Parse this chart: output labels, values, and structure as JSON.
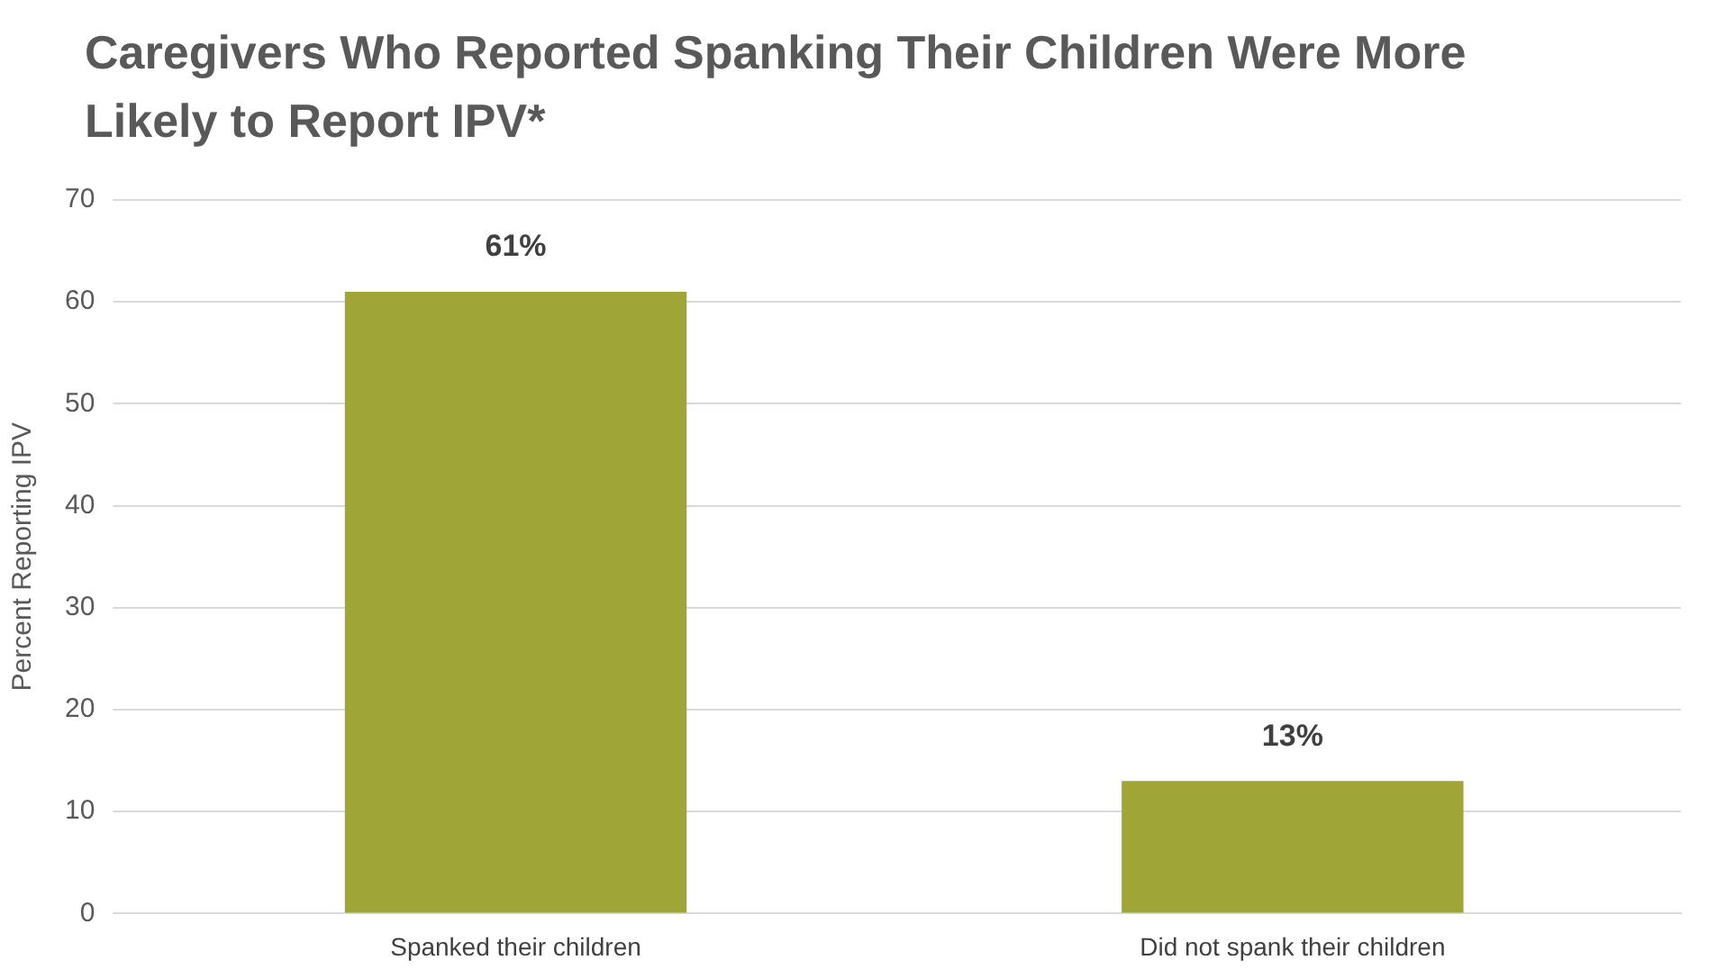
{
  "chart_data": {
    "type": "bar",
    "title": "Caregivers Who Reported Spanking Their Children Were More Likely to Report IPV*",
    "ylabel": "Percent Reporting IPV",
    "categories": [
      "Spanked their children",
      "Did not spank their children"
    ],
    "values": [
      61,
      13
    ],
    "value_labels": [
      "61%",
      "13%"
    ],
    "color": "#a0a537",
    "ylim": [
      0,
      70
    ],
    "yticks": [
      0,
      10,
      20,
      30,
      40,
      50,
      60,
      70
    ],
    "grid": "y",
    "legend": false
  }
}
